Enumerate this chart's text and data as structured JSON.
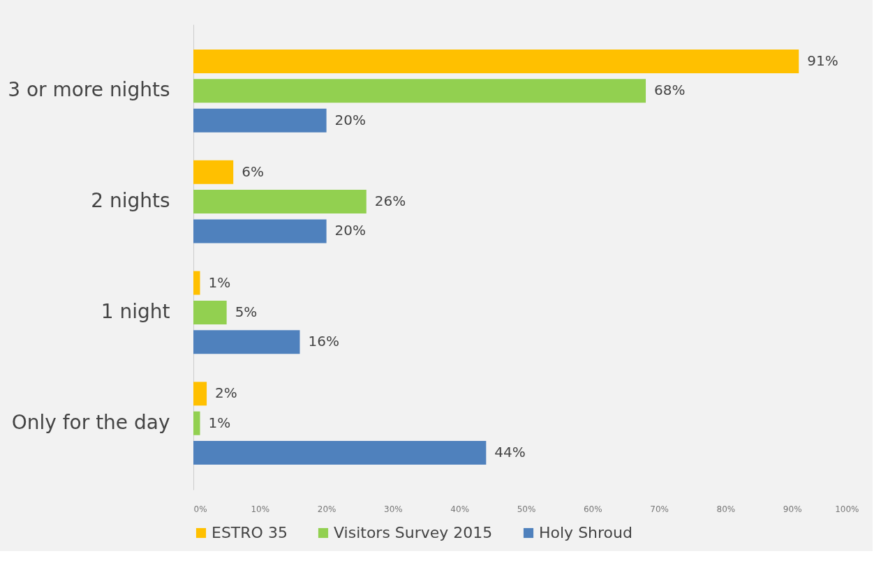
{
  "chart_data": {
    "type": "bar",
    "orientation": "horizontal",
    "categories": [
      "3 or more nights",
      "2 nights",
      "1 night",
      "Only for the day"
    ],
    "series": [
      {
        "name": "ESTRO 35",
        "color": "#ffc000",
        "values": [
          91,
          6,
          1,
          2
        ],
        "value_labels": [
          "91%",
          "6%",
          "1%",
          "2%"
        ]
      },
      {
        "name": "Visitors Survey 2015",
        "color": "#92d050",
        "values": [
          68,
          26,
          5,
          1
        ],
        "value_labels": [
          "68%",
          "26%",
          "5%",
          "1%"
        ]
      },
      {
        "name": "Holy Shroud",
        "color": "#4f81bd",
        "values": [
          20,
          20,
          16,
          44
        ],
        "value_labels": [
          "20%",
          "20%",
          "16%",
          "44%"
        ]
      }
    ],
    "xlim": [
      0,
      100
    ],
    "xticks": [
      {
        "value": 0,
        "label": "0%"
      },
      {
        "value": 10,
        "label": "10%"
      },
      {
        "value": 20,
        "label": "20%"
      },
      {
        "value": 30,
        "label": "30%"
      },
      {
        "value": 40,
        "label": "40%"
      },
      {
        "value": 50,
        "label": "50%"
      },
      {
        "value": 60,
        "label": "60%"
      },
      {
        "value": 70,
        "label": "70%"
      },
      {
        "value": 80,
        "label": "80%"
      },
      {
        "value": 90,
        "label": "90%"
      },
      {
        "value": 100,
        "label": "100%"
      }
    ],
    "grid": false,
    "legend": "bottom"
  }
}
